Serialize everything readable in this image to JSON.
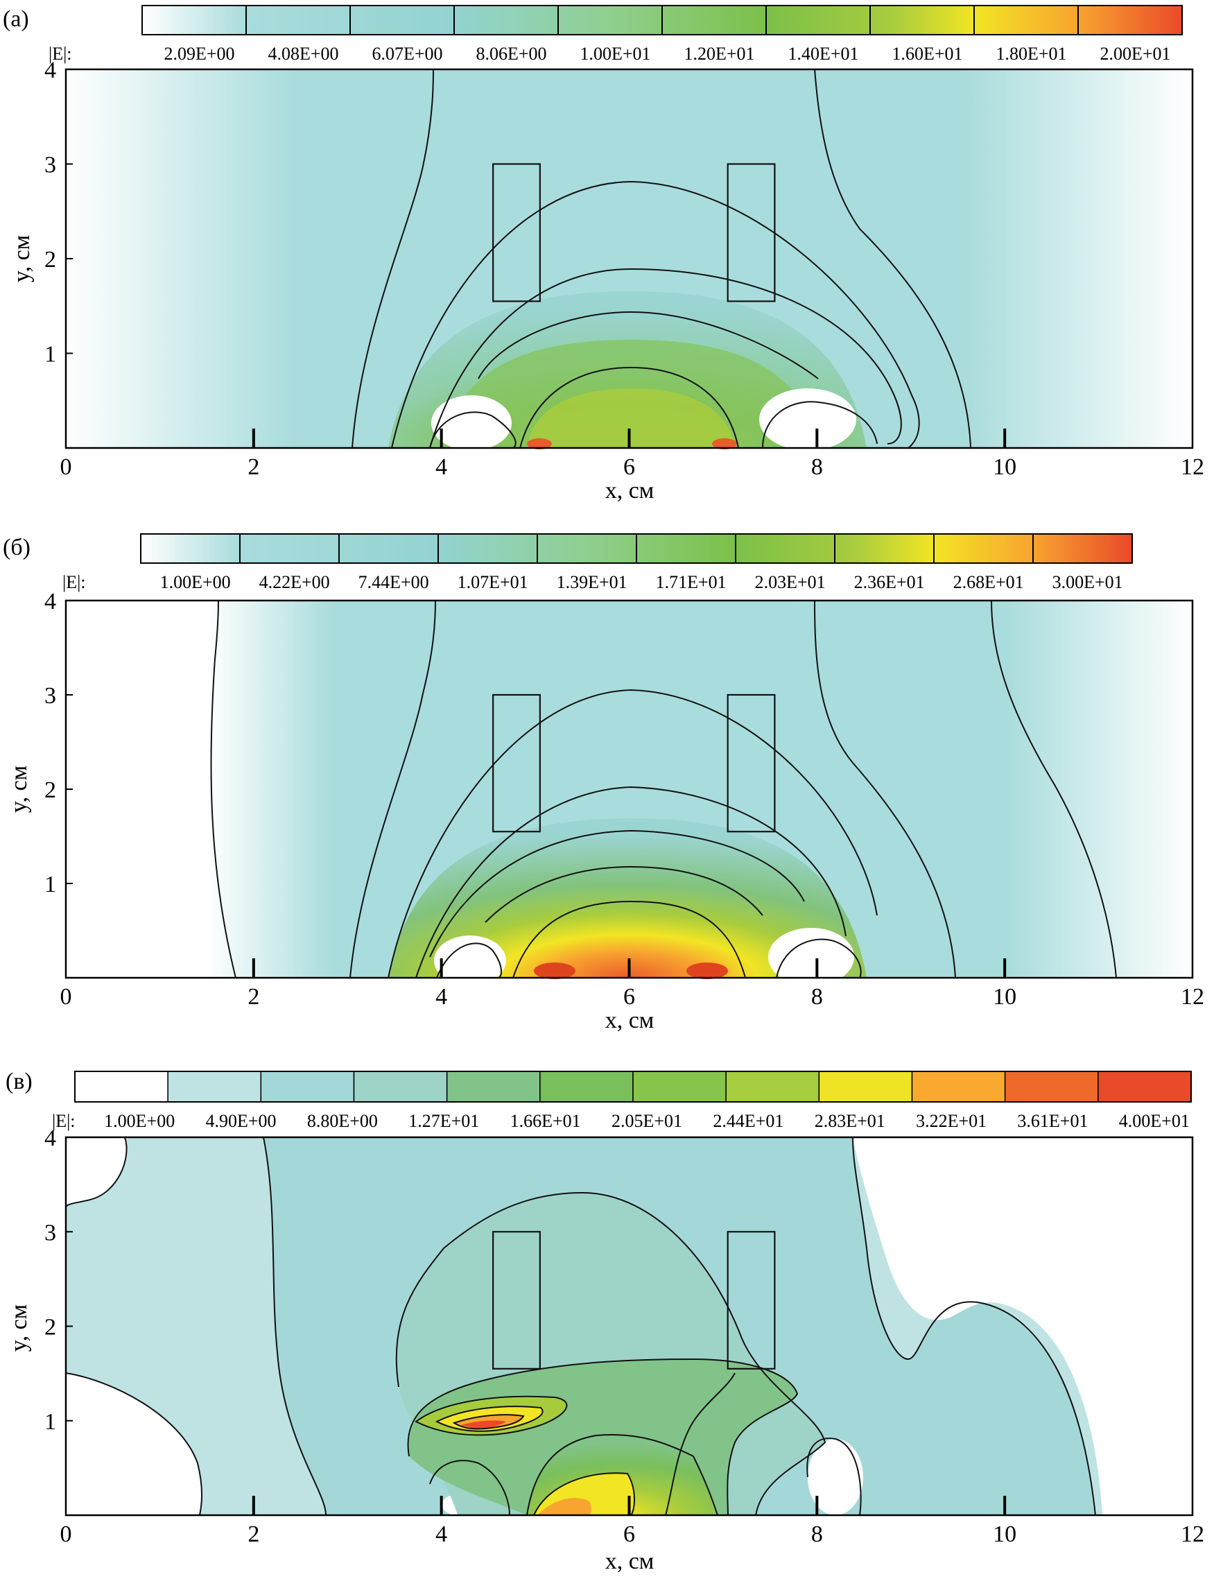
{
  "figure": {
    "x_unit_label": "x, см",
    "y_unit_label": "y, см",
    "colorbar_title": "|E|:"
  },
  "chart_data": [
    {
      "type": "heatmap",
      "panel_label": "(а)",
      "field": "|E|",
      "xlabel": "x, см",
      "ylabel": "y, см",
      "xlim": [
        0,
        12
      ],
      "ylim": [
        0,
        4
      ],
      "xticks": [
        "0",
        "2",
        "4",
        "6",
        "8",
        "10",
        "12"
      ],
      "yticks": [
        "1",
        "2",
        "3",
        "4"
      ],
      "colorbar_levels": [
        "2.09E+00",
        "4.08E+00",
        "6.07E+00",
        "8.06E+00",
        "1.00E+01",
        "1.20E+01",
        "1.40E+01",
        "1.60E+01",
        "1.80E+01",
        "2.00E+01"
      ],
      "colorbar_colors": [
        "#e9f6f6",
        "#a9dcdc",
        "#93d3d1",
        "#8fcf8f",
        "#78c05a",
        "#7cc049",
        "#a8cc3e",
        "#f2e524",
        "#f8a430",
        "#ea5b2a"
      ],
      "objects": [
        {
          "x0": 4.55,
          "x1": 5.05,
          "y0": 1.55,
          "y1": 3.0
        },
        {
          "x0": 7.05,
          "x1": 7.55,
          "y0": 1.55,
          "y1": 3.0
        }
      ],
      "markers_x": [
        2,
        4,
        6,
        8,
        10
      ],
      "peak_value": 20.0
    },
    {
      "type": "heatmap",
      "panel_label": "(б)",
      "field": "|E|",
      "xlabel": "x, см",
      "ylabel": "y, см",
      "xlim": [
        0,
        12
      ],
      "ylim": [
        0,
        4
      ],
      "xticks": [
        "0",
        "2",
        "4",
        "6",
        "8",
        "10",
        "12"
      ],
      "yticks": [
        "1",
        "2",
        "3",
        "4"
      ],
      "colorbar_levels": [
        "1.00E+00",
        "4.22E+00",
        "7.44E+00",
        "1.07E+01",
        "1.39E+01",
        "1.71E+01",
        "2.03E+01",
        "2.36E+01",
        "2.68E+01",
        "3.00E+01"
      ],
      "colorbar_colors": [
        "#e9f6f6",
        "#a9dcdc",
        "#93d3d1",
        "#8fcf8f",
        "#78c05a",
        "#7cc049",
        "#a8cc3e",
        "#f2e524",
        "#f8a430",
        "#ea5b2a"
      ],
      "objects": [
        {
          "x0": 4.55,
          "x1": 5.05,
          "y0": 1.55,
          "y1": 3.0
        },
        {
          "x0": 7.05,
          "x1": 7.55,
          "y0": 1.55,
          "y1": 3.0
        }
      ],
      "markers_x": [
        2,
        4,
        6,
        8,
        10
      ],
      "peak_value": 30.0
    },
    {
      "type": "heatmap",
      "panel_label": "(в)",
      "field": "|E|",
      "xlabel": "x, см",
      "ylabel": "y, см",
      "xlim": [
        0,
        12
      ],
      "ylim": [
        0,
        4
      ],
      "xticks": [
        "0",
        "2",
        "4",
        "6",
        "8",
        "10",
        "12"
      ],
      "yticks": [
        "1",
        "2",
        "3",
        "4"
      ],
      "colorbar_levels": [
        "1.00E+00",
        "4.90E+00",
        "8.80E+00",
        "1.27E+01",
        "1.66E+01",
        "2.05E+01",
        "2.44E+01",
        "2.83E+01",
        "3.22E+01",
        "3.61E+01",
        "4.00E+01"
      ],
      "colorbar_colors": [
        "#ffffff",
        "#bfe3e3",
        "#a4d8d8",
        "#9ed3c8",
        "#82c389",
        "#79bf5c",
        "#86c44c",
        "#a6cc3f",
        "#eee324",
        "#f9a92f",
        "#ee6a2a",
        "#e84a2a"
      ],
      "objects": [
        {
          "x0": 4.55,
          "x1": 5.05,
          "y0": 1.55,
          "y1": 3.0
        },
        {
          "x0": 7.05,
          "x1": 7.55,
          "y0": 1.55,
          "y1": 3.0
        }
      ],
      "markers_x": [
        2,
        4,
        6,
        8,
        10
      ],
      "peak_value": 40.0
    }
  ]
}
